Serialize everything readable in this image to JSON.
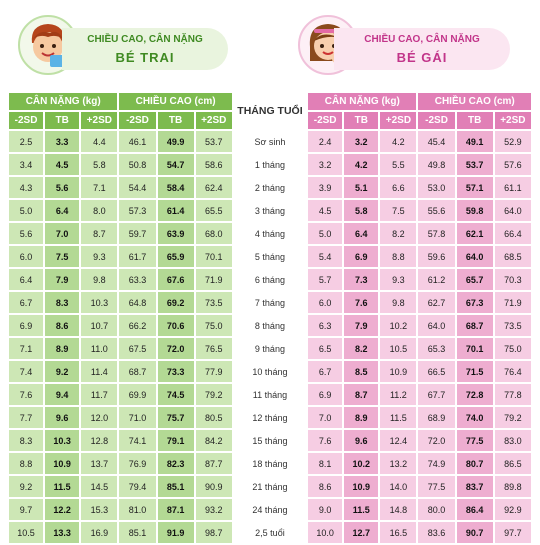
{
  "boy_header": {
    "subtitle": "CHIỀU CAO, CÂN NẶNG",
    "title": "BÉ TRAI"
  },
  "girl_header": {
    "subtitle": "CHIỀU CAO, CÂN NẶNG",
    "title": "BÉ GÁI"
  },
  "table": {
    "group_headers": {
      "boy_weight": "CÂN NẶNG (kg)",
      "boy_height": "CHIỀU CAO (cm)",
      "age": "THÁNG TUỔI",
      "girl_weight": "CÂN NẶNG (kg)",
      "girl_height": "CHIỀU CAO (cm)"
    },
    "sub_headers": [
      "-2SD",
      "TB",
      "+2SD"
    ],
    "rows": [
      {
        "age": "Sơ sinh",
        "bw": [
          "2.5",
          "3.3",
          "4.4"
        ],
        "bh": [
          "46.1",
          "49.9",
          "53.7"
        ],
        "gw": [
          "2.4",
          "3.2",
          "4.2"
        ],
        "gh": [
          "45.4",
          "49.1",
          "52.9"
        ]
      },
      {
        "age": "1 tháng",
        "bw": [
          "3.4",
          "4.5",
          "5.8"
        ],
        "bh": [
          "50.8",
          "54.7",
          "58.6"
        ],
        "gw": [
          "3.2",
          "4.2",
          "5.5"
        ],
        "gh": [
          "49.8",
          "53.7",
          "57.6"
        ]
      },
      {
        "age": "2 tháng",
        "bw": [
          "4.3",
          "5.6",
          "7.1"
        ],
        "bh": [
          "54.4",
          "58.4",
          "62.4"
        ],
        "gw": [
          "3.9",
          "5.1",
          "6.6"
        ],
        "gh": [
          "53.0",
          "57.1",
          "61.1"
        ]
      },
      {
        "age": "3 tháng",
        "bw": [
          "5.0",
          "6.4",
          "8.0"
        ],
        "bh": [
          "57.3",
          "61.4",
          "65.5"
        ],
        "gw": [
          "4.5",
          "5.8",
          "7.5"
        ],
        "gh": [
          "55.6",
          "59.8",
          "64.0"
        ]
      },
      {
        "age": "4 tháng",
        "bw": [
          "5.6",
          "7.0",
          "8.7"
        ],
        "bh": [
          "59.7",
          "63.9",
          "68.0"
        ],
        "gw": [
          "5.0",
          "6.4",
          "8.2"
        ],
        "gh": [
          "57.8",
          "62.1",
          "66.4"
        ]
      },
      {
        "age": "5 tháng",
        "bw": [
          "6.0",
          "7.5",
          "9.3"
        ],
        "bh": [
          "61.7",
          "65.9",
          "70.1"
        ],
        "gw": [
          "5.4",
          "6.9",
          "8.8"
        ],
        "gh": [
          "59.6",
          "64.0",
          "68.5"
        ]
      },
      {
        "age": "6 tháng",
        "bw": [
          "6.4",
          "7.9",
          "9.8"
        ],
        "bh": [
          "63.3",
          "67.6",
          "71.9"
        ],
        "gw": [
          "5.7",
          "7.3",
          "9.3"
        ],
        "gh": [
          "61.2",
          "65.7",
          "70.3"
        ]
      },
      {
        "age": "7 tháng",
        "bw": [
          "6.7",
          "8.3",
          "10.3"
        ],
        "bh": [
          "64.8",
          "69.2",
          "73.5"
        ],
        "gw": [
          "6.0",
          "7.6",
          "9.8"
        ],
        "gh": [
          "62.7",
          "67.3",
          "71.9"
        ]
      },
      {
        "age": "8 tháng",
        "bw": [
          "6.9",
          "8.6",
          "10.7"
        ],
        "bh": [
          "66.2",
          "70.6",
          "75.0"
        ],
        "gw": [
          "6.3",
          "7.9",
          "10.2"
        ],
        "gh": [
          "64.0",
          "68.7",
          "73.5"
        ]
      },
      {
        "age": "9 tháng",
        "bw": [
          "7.1",
          "8.9",
          "11.0"
        ],
        "bh": [
          "67.5",
          "72.0",
          "76.5"
        ],
        "gw": [
          "6.5",
          "8.2",
          "10.5"
        ],
        "gh": [
          "65.3",
          "70.1",
          "75.0"
        ]
      },
      {
        "age": "10 tháng",
        "bw": [
          "7.4",
          "9.2",
          "11.4"
        ],
        "bh": [
          "68.7",
          "73.3",
          "77.9"
        ],
        "gw": [
          "6.7",
          "8.5",
          "10.9"
        ],
        "gh": [
          "66.5",
          "71.5",
          "76.4"
        ]
      },
      {
        "age": "11 tháng",
        "bw": [
          "7.6",
          "9.4",
          "11.7"
        ],
        "bh": [
          "69.9",
          "74.5",
          "79.2"
        ],
        "gw": [
          "6.9",
          "8.7",
          "11.2"
        ],
        "gh": [
          "67.7",
          "72.8",
          "77.8"
        ]
      },
      {
        "age": "12 tháng",
        "bw": [
          "7.7",
          "9.6",
          "12.0"
        ],
        "bh": [
          "71.0",
          "75.7",
          "80.5"
        ],
        "gw": [
          "7.0",
          "8.9",
          "11.5"
        ],
        "gh": [
          "68.9",
          "74.0",
          "79.2"
        ]
      },
      {
        "age": "15 tháng",
        "bw": [
          "8.3",
          "10.3",
          "12.8"
        ],
        "bh": [
          "74.1",
          "79.1",
          "84.2"
        ],
        "gw": [
          "7.6",
          "9.6",
          "12.4"
        ],
        "gh": [
          "72.0",
          "77.5",
          "83.0"
        ]
      },
      {
        "age": "18 tháng",
        "bw": [
          "8.8",
          "10.9",
          "13.7"
        ],
        "bh": [
          "76.9",
          "82.3",
          "87.7"
        ],
        "gw": [
          "8.1",
          "10.2",
          "13.2"
        ],
        "gh": [
          "74.9",
          "80.7",
          "86.5"
        ]
      },
      {
        "age": "21 tháng",
        "bw": [
          "9.2",
          "11.5",
          "14.5"
        ],
        "bh": [
          "79.4",
          "85.1",
          "90.9"
        ],
        "gw": [
          "8.6",
          "10.9",
          "14.0"
        ],
        "gh": [
          "77.5",
          "83.7",
          "89.8"
        ]
      },
      {
        "age": "24 tháng",
        "bw": [
          "9.7",
          "12.2",
          "15.3"
        ],
        "bh": [
          "81.0",
          "87.1",
          "93.2"
        ],
        "gw": [
          "9.0",
          "11.5",
          "14.8"
        ],
        "gh": [
          "80.0",
          "86.4",
          "92.9"
        ]
      },
      {
        "age": "2,5 tuổi",
        "bw": [
          "10.5",
          "13.3",
          "16.9"
        ],
        "bh": [
          "85.1",
          "91.9",
          "98.7"
        ],
        "gw": [
          "10.0",
          "12.7",
          "16.5"
        ],
        "gh": [
          "83.6",
          "90.7",
          "97.7"
        ]
      }
    ]
  }
}
